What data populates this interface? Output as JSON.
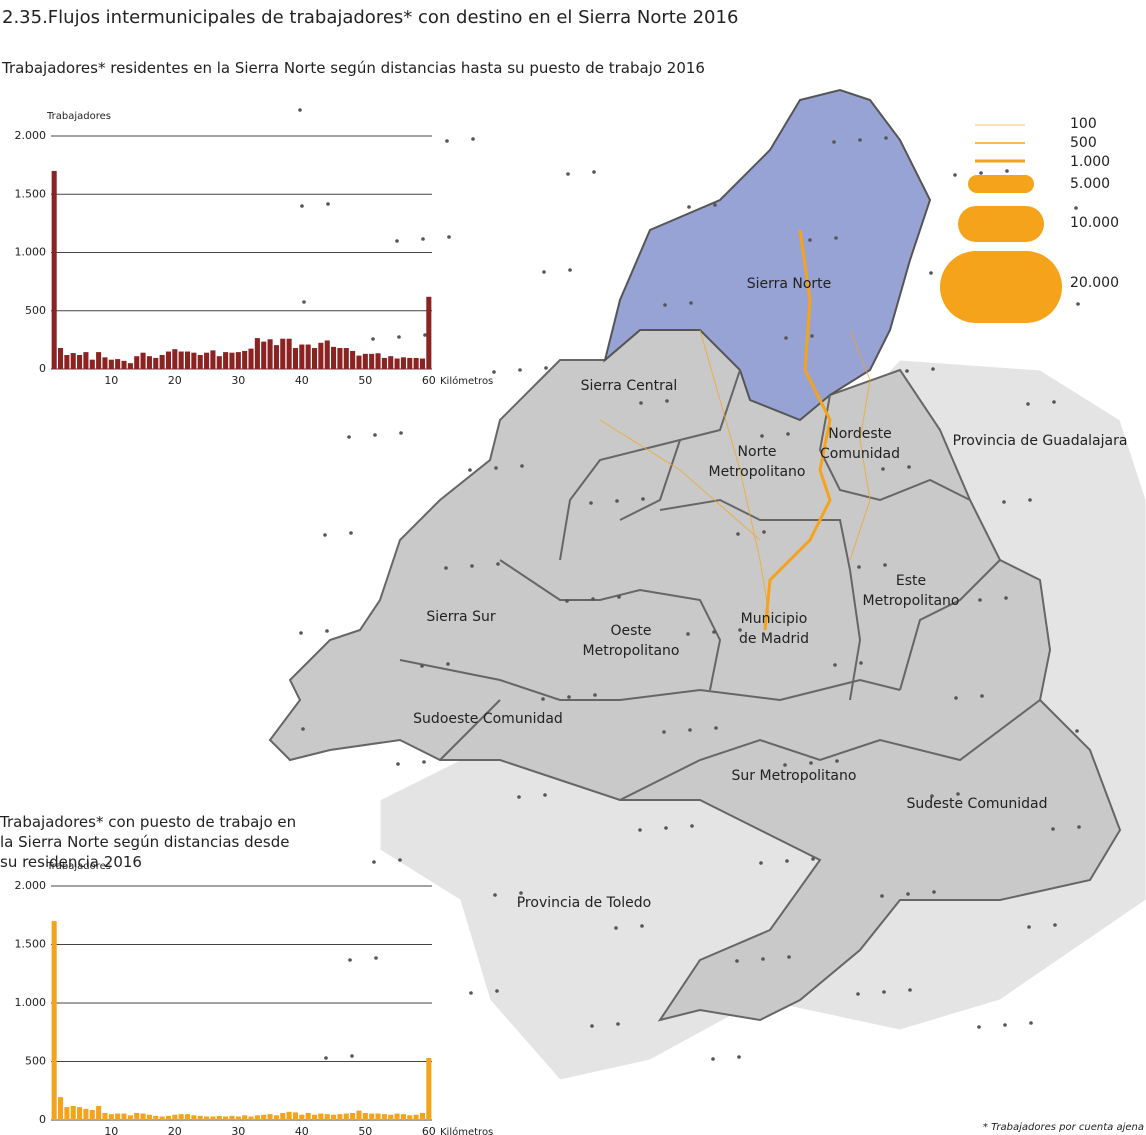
{
  "header": {
    "title": "2.35.Flujos intermunicipales de trabajadores* con destino en el Sierra Norte 2016"
  },
  "chart_data": [
    {
      "type": "bar",
      "title": "Trabajadores* residentes en la Sierra Norte según distancias hasta su puesto de trabajo 2016",
      "y_label": "Trabajadores",
      "x_label": "Kilómetros",
      "color": "#8b2323",
      "x": [
        1,
        2,
        3,
        4,
        5,
        6,
        7,
        8,
        9,
        10,
        11,
        12,
        13,
        14,
        15,
        16,
        17,
        18,
        19,
        20,
        21,
        22,
        23,
        24,
        25,
        26,
        27,
        28,
        29,
        30,
        31,
        32,
        33,
        34,
        35,
        36,
        37,
        38,
        39,
        40,
        41,
        42,
        43,
        44,
        45,
        46,
        47,
        48,
        49,
        50,
        51,
        52,
        53,
        54,
        55,
        56,
        57,
        58,
        59,
        60
      ],
      "values": [
        1700,
        180,
        120,
        137,
        120,
        145,
        80,
        145,
        100,
        80,
        85,
        70,
        50,
        110,
        140,
        110,
        95,
        120,
        150,
        170,
        150,
        150,
        140,
        120,
        140,
        160,
        110,
        145,
        140,
        145,
        155,
        175,
        265,
        235,
        255,
        205,
        260,
        260,
        180,
        210,
        210,
        180,
        225,
        245,
        190,
        180,
        180,
        155,
        115,
        130,
        130,
        135,
        95,
        110,
        90,
        100,
        95,
        95,
        90,
        620
      ],
      "xlim": [
        0.5,
        60.5
      ],
      "xticks": [
        10,
        20,
        30,
        40,
        50,
        60
      ],
      "ylim": [
        0,
        2000
      ],
      "yticks": [
        0,
        500,
        {
          "value": 1000,
          "label": "1.000"
        },
        {
          "value": 1500,
          "label": "1.500"
        },
        {
          "value": 2000,
          "label": "2.000"
        }
      ],
      "grid": true
    },
    {
      "type": "bar",
      "title": "Trabajadores* con puesto de trabajo en la Sierra Norte según distancias desde su residencia 2016",
      "y_label": "Trabajadores",
      "x_label": "Kilómetros",
      "color": "#f5a31a",
      "x": [
        1,
        2,
        3,
        4,
        5,
        6,
        7,
        8,
        9,
        10,
        11,
        12,
        13,
        14,
        15,
        16,
        17,
        18,
        19,
        20,
        21,
        22,
        23,
        24,
        25,
        26,
        27,
        28,
        29,
        30,
        31,
        32,
        33,
        34,
        35,
        36,
        37,
        38,
        39,
        40,
        41,
        42,
        43,
        44,
        45,
        46,
        47,
        48,
        49,
        50,
        51,
        52,
        53,
        54,
        55,
        56,
        57,
        58,
        59,
        60
      ],
      "values": [
        1700,
        195,
        110,
        120,
        110,
        95,
        85,
        120,
        60,
        50,
        55,
        55,
        40,
        60,
        55,
        45,
        35,
        30,
        35,
        45,
        50,
        50,
        40,
        35,
        30,
        30,
        35,
        30,
        35,
        30,
        40,
        30,
        40,
        45,
        50,
        40,
        60,
        70,
        65,
        45,
        60,
        45,
        55,
        50,
        45,
        50,
        55,
        60,
        80,
        60,
        55,
        55,
        50,
        45,
        55,
        50,
        40,
        45,
        60,
        530
      ],
      "xlim": [
        0.5,
        60.5
      ],
      "xticks": [
        10,
        20,
        30,
        40,
        50,
        60
      ],
      "ylim": [
        0,
        2000
      ],
      "yticks": [
        0,
        500,
        {
          "value": 1000,
          "label": "1.000"
        },
        {
          "value": 1500,
          "label": "1.500"
        },
        {
          "value": 2000,
          "label": "2.000"
        }
      ],
      "grid": true
    }
  ],
  "map": {
    "regions": [
      {
        "lines": [
          "Sierra Norte"
        ]
      },
      {
        "lines": [
          "Sierra Central"
        ]
      },
      {
        "lines": [
          "Norte",
          "Metropolitano"
        ]
      },
      {
        "lines": [
          "Nordeste",
          "Comunidad"
        ]
      },
      {
        "lines": [
          "Provincia de Guadalajara"
        ]
      },
      {
        "lines": [
          "Este",
          "Metropolitano"
        ]
      },
      {
        "lines": [
          "Sierra Sur"
        ]
      },
      {
        "lines": [
          "Municipio",
          "de Madrid"
        ]
      },
      {
        "lines": [
          "Oeste",
          "Metropolitano"
        ]
      },
      {
        "lines": [
          "Sudoeste Comunidad"
        ]
      },
      {
        "lines": [
          "Sur Metropolitano"
        ]
      },
      {
        "lines": [
          "Sudeste Comunidad"
        ]
      },
      {
        "lines": [
          "Provincia de Toledo"
        ]
      }
    ],
    "legend": [
      "100",
      "500",
      "1.000",
      "5.000",
      "10.000",
      "20.000"
    ]
  },
  "footnote": "* Trabajadores por cuenta ajena"
}
